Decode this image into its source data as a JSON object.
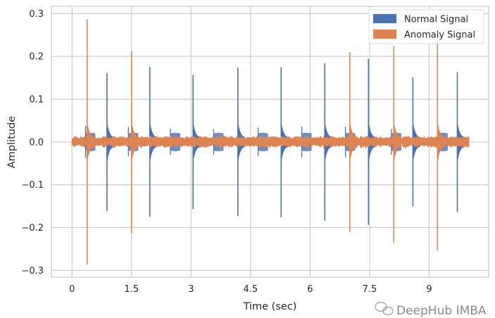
{
  "chart_data": {
    "type": "line",
    "title": "",
    "xlabel": "Time (sec)",
    "ylabel": "Amplitude",
    "xlim": [
      -0.52,
      10.5
    ],
    "ylim": [
      -0.316,
      0.317
    ],
    "xticks": [
      0,
      1.5,
      3,
      4.5,
      6,
      7.5,
      9
    ],
    "xtick_labels": [
      "0",
      "1.5",
      "3",
      "4.5",
      "6",
      "7.5",
      "9"
    ],
    "yticks": [
      0.3,
      0.2,
      0.1,
      0.0,
      -0.1,
      -0.2,
      -0.3
    ],
    "ytick_labels": [
      "0.3",
      "0.2",
      "0.1",
      "0.0",
      "−0.1",
      "−0.2",
      "−0.3"
    ],
    "grid": true,
    "legend_position": "top-right",
    "signal_duration_sec": 10.0,
    "series": [
      {
        "name": "Normal Signal",
        "color": "#4c72b0",
        "noise_amplitude": 0.008,
        "spikes": [
          {
            "t": 0.88,
            "max": 0.161,
            "min": -0.161
          },
          {
            "t": 1.96,
            "max": 0.175,
            "min": -0.175
          },
          {
            "t": 3.05,
            "max": 0.157,
            "min": -0.157
          },
          {
            "t": 4.18,
            "max": 0.174,
            "min": -0.173
          },
          {
            "t": 5.27,
            "max": 0.175,
            "min": -0.176
          },
          {
            "t": 6.37,
            "max": 0.184,
            "min": -0.184
          },
          {
            "t": 7.47,
            "max": 0.194,
            "min": -0.194
          },
          {
            "t": 8.59,
            "max": 0.151,
            "min": -0.151
          },
          {
            "t": 9.71,
            "max": 0.163,
            "min": -0.164
          }
        ],
        "minor_spikes": [
          {
            "t": 0.34,
            "max": 0.037,
            "min": -0.037
          },
          {
            "t": 1.42,
            "max": 0.035,
            "min": -0.033
          },
          {
            "t": 2.48,
            "max": 0.031,
            "min": -0.03
          },
          {
            "t": 3.57,
            "max": 0.03,
            "min": -0.03
          },
          {
            "t": 4.69,
            "max": 0.034,
            "min": -0.033
          },
          {
            "t": 5.79,
            "max": 0.036,
            "min": -0.036
          },
          {
            "t": 6.89,
            "max": 0.036,
            "min": -0.036
          },
          {
            "t": 8.05,
            "max": 0.03,
            "min": -0.03
          },
          {
            "t": 9.22,
            "max": 0.034,
            "min": -0.034
          }
        ]
      },
      {
        "name": "Anomaly Signal",
        "color": "#dd8452",
        "noise_amplitude": 0.012,
        "spikes": [
          {
            "t": 0.38,
            "max": 0.287,
            "min": -0.287
          },
          {
            "t": 1.5,
            "max": 0.212,
            "min": -0.213
          },
          {
            "t": 7.0,
            "max": 0.21,
            "min": -0.21
          },
          {
            "t": 8.11,
            "max": 0.225,
            "min": -0.236
          },
          {
            "t": 9.21,
            "max": 0.25,
            "min": -0.254
          }
        ]
      }
    ]
  },
  "watermark": "DeepHub IMBA"
}
